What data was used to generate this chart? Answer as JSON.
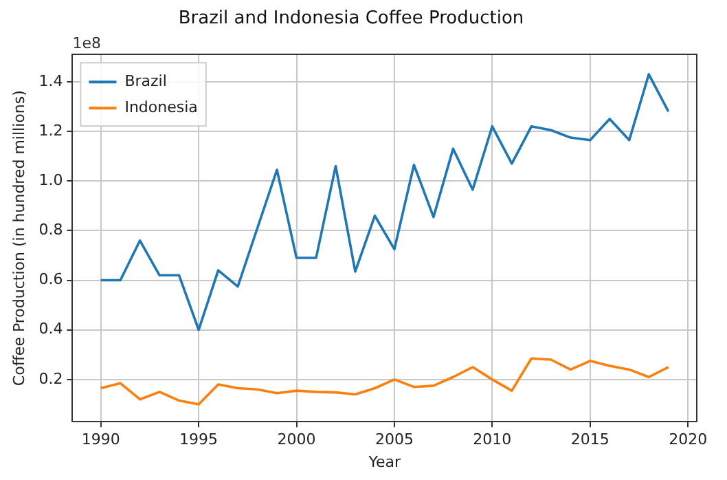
{
  "chart_data": {
    "type": "line",
    "title": "Brazil and Indonesia Coffee Production",
    "xlabel": "Year",
    "ylabel": "Coffee Production (in hundred millions)",
    "annotations": [
      "1e8"
    ],
    "x": [
      1990,
      1991,
      1992,
      1993,
      1994,
      1995,
      1996,
      1997,
      1998,
      1999,
      2000,
      2001,
      2002,
      2003,
      2004,
      2005,
      2006,
      2007,
      2008,
      2009,
      2010,
      2011,
      2012,
      2013,
      2014,
      2015,
      2016,
      2017,
      2018,
      2019
    ],
    "series": [
      {
        "name": "Brazil",
        "color": "#1f77b4",
        "values": [
          0.6,
          0.6,
          0.76,
          0.62,
          0.62,
          0.4,
          0.64,
          0.575,
          0.81,
          1.045,
          0.69,
          0.69,
          1.06,
          0.635,
          0.86,
          0.725,
          1.065,
          0.855,
          1.13,
          0.965,
          1.22,
          1.07,
          1.22,
          1.205,
          1.175,
          1.165,
          1.25,
          1.165,
          1.43,
          1.28
        ]
      },
      {
        "name": "Indonesia",
        "color": "#ff7f0e",
        "values": [
          0.165,
          0.185,
          0.12,
          0.15,
          0.115,
          0.1,
          0.18,
          0.165,
          0.16,
          0.145,
          0.155,
          0.15,
          0.148,
          0.14,
          0.165,
          0.2,
          0.17,
          0.175,
          0.21,
          0.25,
          0.2,
          0.155,
          0.285,
          0.28,
          0.24,
          0.275,
          0.255,
          0.24,
          0.21,
          0.25
        ]
      }
    ],
    "xlim": [
      1988.55,
      2020.45
    ],
    "xticks": [
      1990,
      1995,
      2000,
      2005,
      2010,
      2015,
      2020
    ],
    "ylim": [
      0.03,
      1.51
    ],
    "yticks": [
      0.2,
      0.4,
      0.6,
      0.8,
      {
        "value": 1,
        "label": "1.0"
      },
      1.2,
      1.4
    ],
    "grid": true,
    "legend": "top left",
    "line_style": "solid",
    "marker": "none"
  }
}
